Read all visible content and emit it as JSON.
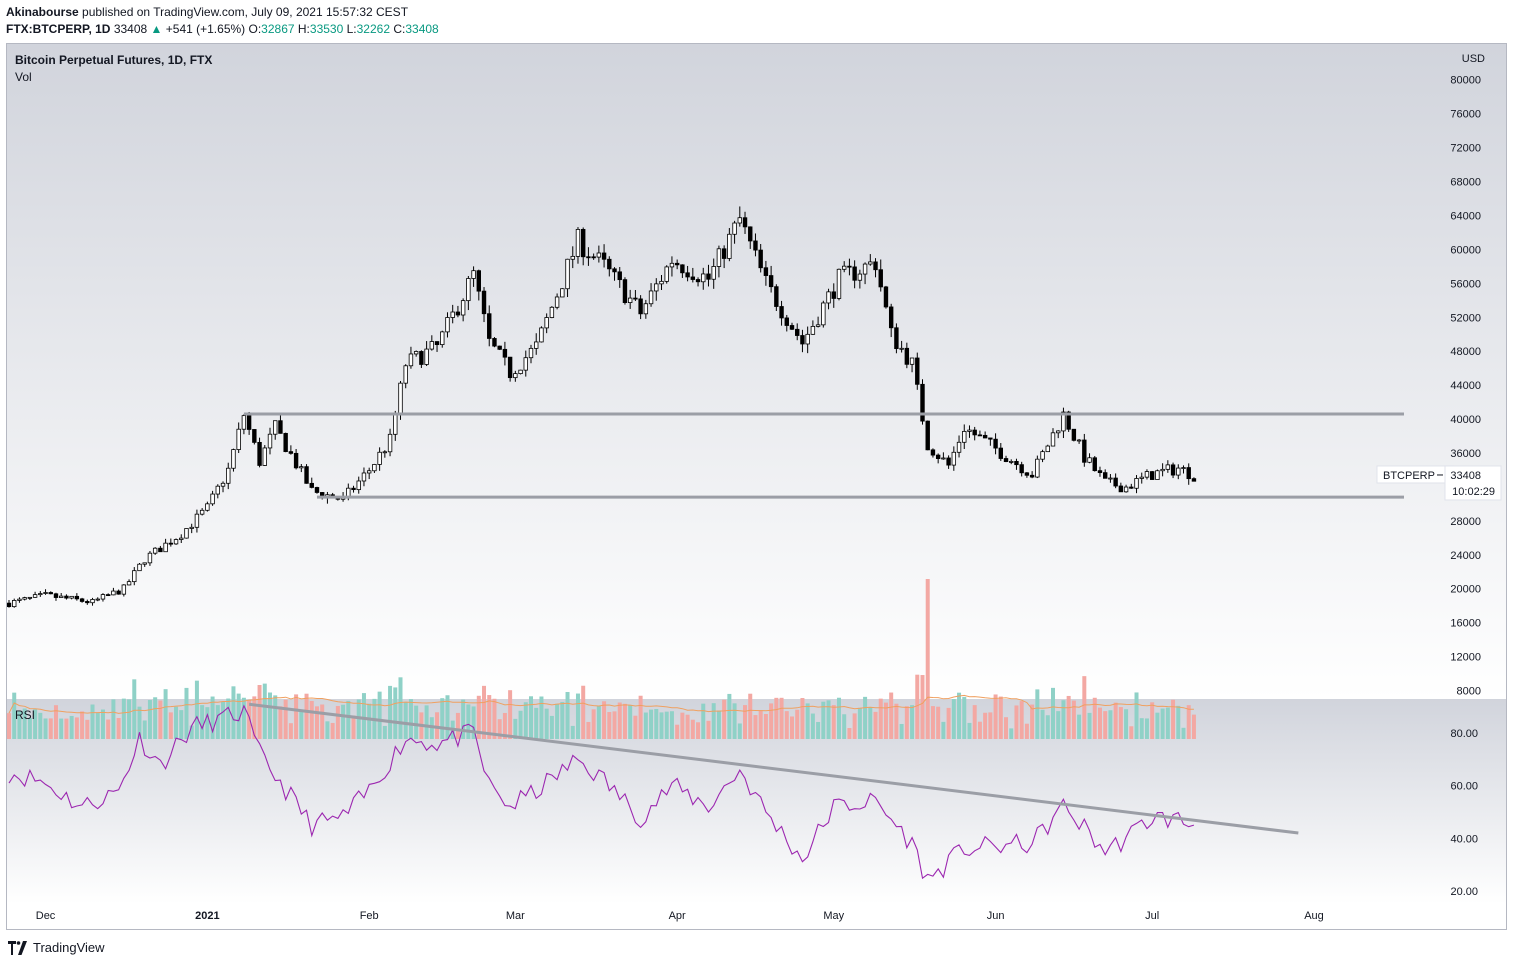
{
  "header": {
    "author": "Akinabourse",
    "published_text": "published on TradingView.com, July 09, 2021 15:57:32 CEST",
    "symbol_line": {
      "symbol": "FTX:BTCPERP, 1D",
      "last": "33408",
      "change": "+541 (+1.65%)",
      "open_label": "O:",
      "open": "32867",
      "high_label": "H:",
      "high": "33530",
      "low_label": "L:",
      "low": "32262",
      "close_label": "C:",
      "close": "33408"
    }
  },
  "legend": {
    "title": "Bitcoin Perpetual Futures, 1D, FTX",
    "volume": "Vol",
    "rsi": "RSI"
  },
  "footer": {
    "brand": "TradingView"
  },
  "colors": {
    "up_volume": "#8fd1c7",
    "down_volume": "#f3a8a3",
    "volume_ma": "#f0a060",
    "rsi_line": "#9c27b0",
    "trendlines": "#9b9ea6",
    "candle": "#000000"
  },
  "chart_data": [
    {
      "type": "candlestick",
      "title": "Bitcoin Perpetual Futures, 1D, FTX",
      "currency": "USD",
      "x_tick_labels": [
        "Dec",
        "2021",
        "Feb",
        "Mar",
        "Apr",
        "May",
        "Jun",
        "Jul",
        "Aug"
      ],
      "y_tick_labels": [
        "8000",
        "12000",
        "16000",
        "20000",
        "24000",
        "28000",
        "32000",
        "36000",
        "40000",
        "44000",
        "48000",
        "52000",
        "56000",
        "60000",
        "64000",
        "68000",
        "72000",
        "76000",
        "80000"
      ],
      "ylim": [
        7000,
        81500
      ],
      "date_range": [
        "2020-11-24",
        "2021-07-09"
      ],
      "approx_close_path": [
        [
          "2020-11-24",
          18300
        ],
        [
          "2020-12-01",
          19200
        ],
        [
          "2020-12-10",
          18400
        ],
        [
          "2020-12-16",
          20000
        ],
        [
          "2020-12-20",
          23500
        ],
        [
          "2020-12-27",
          26500
        ],
        [
          "2021-01-01",
          29500
        ],
        [
          "2021-01-05",
          34000
        ],
        [
          "2021-01-08",
          40500
        ],
        [
          "2021-01-11",
          35000
        ],
        [
          "2021-01-14",
          39000
        ],
        [
          "2021-01-21",
          31500
        ],
        [
          "2021-01-27",
          30500
        ],
        [
          "2021-02-01",
          34000
        ],
        [
          "2021-02-05",
          37500
        ],
        [
          "2021-02-08",
          46500
        ],
        [
          "2021-02-14",
          48500
        ],
        [
          "2021-02-21",
          57000
        ],
        [
          "2021-02-24",
          49000
        ],
        [
          "2021-02-28",
          45500
        ],
        [
          "2021-03-05",
          48500
        ],
        [
          "2021-03-13",
          61000
        ],
        [
          "2021-03-18",
          58000
        ],
        [
          "2021-03-25",
          52500
        ],
        [
          "2021-03-31",
          58800
        ],
        [
          "2021-04-07",
          56500
        ],
        [
          "2021-04-13",
          63500
        ],
        [
          "2021-04-18",
          56000
        ],
        [
          "2021-04-25",
          49000
        ],
        [
          "2021-05-02",
          56500
        ],
        [
          "2021-05-09",
          58500
        ],
        [
          "2021-05-12",
          50000
        ],
        [
          "2021-05-16",
          46500
        ],
        [
          "2021-05-19",
          37000
        ],
        [
          "2021-05-23",
          34500
        ],
        [
          "2021-05-26",
          39000
        ],
        [
          "2021-06-01",
          36500
        ],
        [
          "2021-06-08",
          33500
        ],
        [
          "2021-06-14",
          40500
        ],
        [
          "2021-06-18",
          35500
        ],
        [
          "2021-06-22",
          32500
        ],
        [
          "2021-06-26",
          32000
        ],
        [
          "2021-07-01",
          33500
        ],
        [
          "2021-07-06",
          34200
        ],
        [
          "2021-07-09",
          33408
        ]
      ],
      "annotations": {
        "resistance_level": 40600,
        "support_level": 30800,
        "last_price_label": "BTCPERP",
        "last_price": "33408",
        "countdown": "10:02:29"
      }
    },
    {
      "type": "bar",
      "title": "Vol",
      "up_color": "#8fd1c7",
      "down_color": "#f3a8a3",
      "moving_average": true
    },
    {
      "type": "line",
      "title": "RSI",
      "y_tick_labels": [
        "20.00",
        "40.00",
        "60.00",
        "80.00"
      ],
      "ylim": [
        15,
        93
      ],
      "approx_values_path": [
        [
          "2020-11-24",
          65
        ],
        [
          "2020-11-30",
          62
        ],
        [
          "2020-12-08",
          52
        ],
        [
          "2020-12-15",
          58
        ],
        [
          "2020-12-19",
          78
        ],
        [
          "2020-12-23",
          68
        ],
        [
          "2020-12-29",
          82
        ],
        [
          "2021-01-08",
          88
        ],
        [
          "2021-01-11",
          72
        ],
        [
          "2021-01-21",
          45
        ],
        [
          "2021-01-27",
          48
        ],
        [
          "2021-02-01",
          58
        ],
        [
          "2021-02-08",
          78
        ],
        [
          "2021-02-14",
          76
        ],
        [
          "2021-02-21",
          80
        ],
        [
          "2021-02-24",
          60
        ],
        [
          "2021-02-28",
          52
        ],
        [
          "2021-03-05",
          58
        ],
        [
          "2021-03-13",
          70
        ],
        [
          "2021-03-18",
          62
        ],
        [
          "2021-03-25",
          48
        ],
        [
          "2021-03-31",
          60
        ],
        [
          "2021-04-07",
          52
        ],
        [
          "2021-04-13",
          66
        ],
        [
          "2021-04-18",
          50
        ],
        [
          "2021-04-25",
          32
        ],
        [
          "2021-05-01",
          52
        ],
        [
          "2021-05-09",
          54
        ],
        [
          "2021-05-16",
          38
        ],
        [
          "2021-05-19",
          24
        ],
        [
          "2021-05-26",
          36
        ],
        [
          "2021-06-08",
          38
        ],
        [
          "2021-06-14",
          52
        ],
        [
          "2021-06-18",
          44
        ],
        [
          "2021-06-22",
          35
        ],
        [
          "2021-06-26",
          40
        ],
        [
          "2021-07-01",
          48
        ],
        [
          "2021-07-06",
          47
        ],
        [
          "2021-07-09",
          45
        ]
      ],
      "trendline": [
        [
          "2021-01-09",
          91
        ],
        [
          "2021-07-29",
          42
        ]
      ]
    }
  ]
}
